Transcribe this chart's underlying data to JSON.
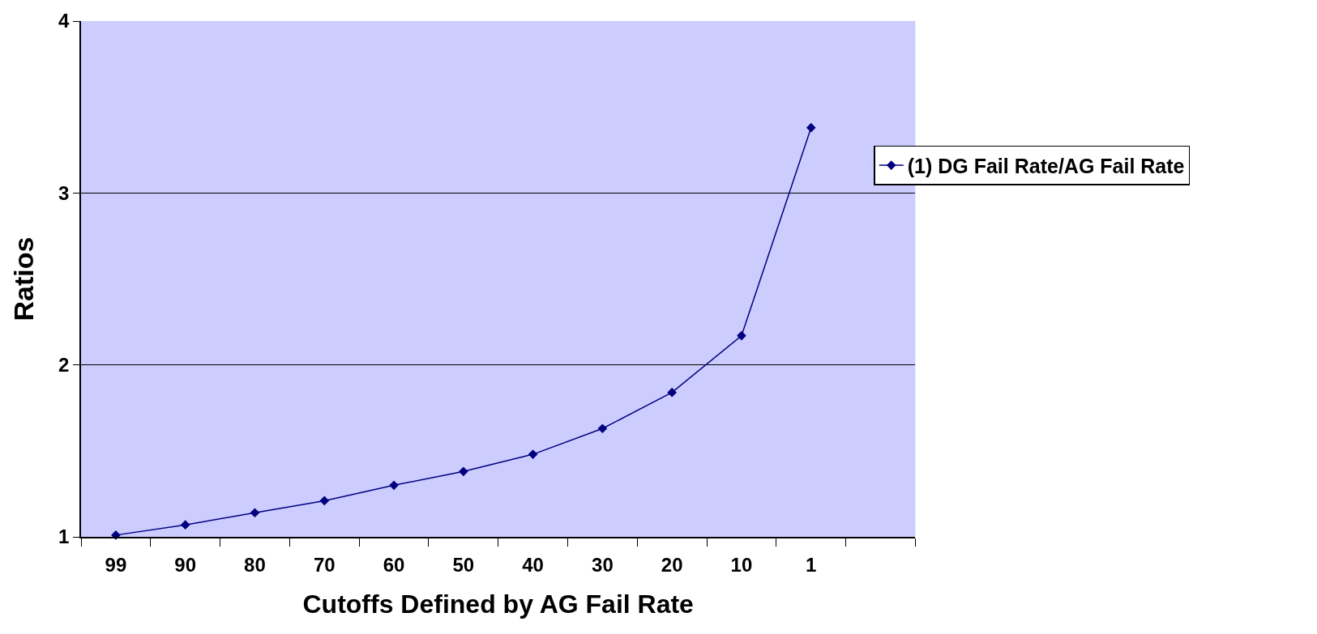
{
  "chart_data": {
    "type": "line",
    "xlabel": "Cutoffs Defined by AG Fail Rate",
    "ylabel": "Ratios",
    "categories": [
      "99",
      "90",
      "80",
      "70",
      "60",
      "50",
      "40",
      "30",
      "20",
      "10",
      "1",
      null
    ],
    "series": [
      {
        "name": "(1) DG Fail Rate/AG Fail Rate",
        "color": "#000080",
        "values": [
          1.01,
          1.07,
          1.14,
          1.21,
          1.3,
          1.38,
          1.48,
          1.63,
          1.84,
          2.17,
          3.38,
          null
        ]
      }
    ],
    "ylim": [
      1,
      4
    ],
    "yticks": [
      1,
      2,
      3,
      4
    ],
    "grid": "y",
    "legend": "right",
    "marker": "diamond",
    "line_style": "solid"
  }
}
